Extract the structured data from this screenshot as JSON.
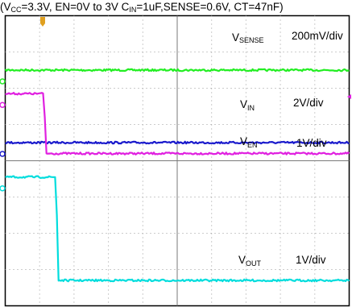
{
  "caption": {
    "open": "(V",
    "vcc_sub": "CC",
    "part1": "=3.3V, EN=0V to 3V C",
    "cin_sub": "IN",
    "part2": "=1uF,SENSE=0.6V, CT=47nF)"
  },
  "chart_data": {
    "type": "line",
    "title": "(VCC=3.3V, EN=0V to 3V CIN=1uF,SENSE=0.6V, CT=47nF)",
    "grid": true,
    "divisions": {
      "x": 10,
      "y": 8
    },
    "series": [
      {
        "name": "VSENSE",
        "scale": "200mV/div",
        "color": "#22ee22",
        "x": [
          0,
          10
        ],
        "y": [
          6.5,
          6.5
        ]
      },
      {
        "name": "VIN",
        "scale": "2V/div",
        "color": "#1a1acc",
        "x": [
          0,
          10
        ],
        "y": [
          4.5,
          4.5
        ]
      },
      {
        "name": "VEN",
        "scale": "1V/div",
        "color": "#e020e0",
        "x": [
          0,
          1.1,
          1.15,
          1.2,
          10
        ],
        "y": [
          5.85,
          5.85,
          5.2,
          4.2,
          4.2
        ]
      },
      {
        "name": "VOUT",
        "scale": "1V/div",
        "color": "#00dddd",
        "x": [
          0,
          1.45,
          1.5,
          1.55,
          10
        ],
        "y": [
          3.55,
          3.55,
          2.5,
          0.7,
          0.7
        ]
      }
    ],
    "labels": [
      {
        "main": "V",
        "sub": "SENSE",
        "scale": "200mV/div"
      },
      {
        "main": "V",
        "sub": "IN",
        "scale": "2V/div"
      },
      {
        "main": "V",
        "sub": "EN",
        "scale": "1V/div"
      },
      {
        "main": "V",
        "sub": "OUT",
        "scale": "1V/div"
      }
    ]
  }
}
